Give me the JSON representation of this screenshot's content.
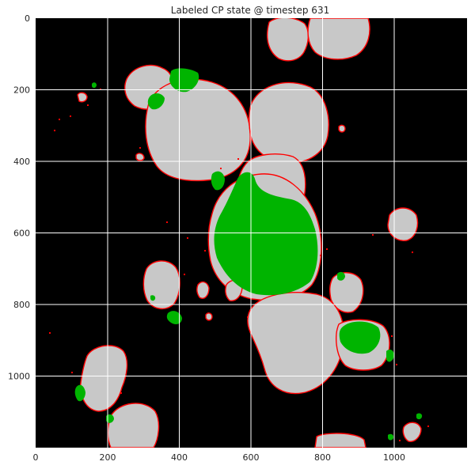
{
  "figure": {
    "title": "Labeled CP state @ timestep 631"
  },
  "axes": {
    "x_ticks": [
      "0",
      "200",
      "400",
      "600",
      "800",
      "1000"
    ],
    "y_ticks": [
      "0",
      "200",
      "400",
      "600",
      "800",
      "1000"
    ],
    "x_range": [
      0,
      1200
    ],
    "y_range": [
      0,
      1200
    ],
    "y_inverted": true,
    "grid": true
  },
  "colors": {
    "background": "#000000",
    "cell": "#c8c8c8",
    "boundary": "#ff0000",
    "labeled": "#00b400",
    "grid": "#ffffff"
  }
}
